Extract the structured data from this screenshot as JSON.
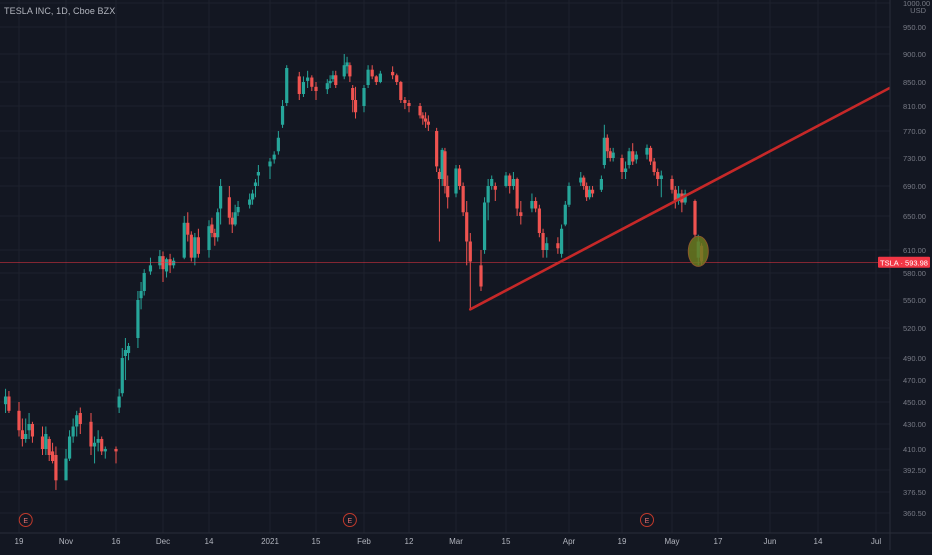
{
  "header": {
    "title": "TESLA INC, 1D, Cboe BZX"
  },
  "chart_data": {
    "type": "candlestick",
    "currency": "USD",
    "y_ticks": [
      1000,
      950,
      900,
      850,
      810,
      770,
      730,
      690,
      650,
      610,
      580,
      550,
      520,
      490,
      470,
      450,
      430,
      410,
      392.5,
      376.5,
      360.5
    ],
    "y_tick_labels": [
      "1000.00",
      "950.00",
      "900.00",
      "850.00",
      "810.00",
      "770.00",
      "730.00",
      "690.00",
      "650.00",
      "610.00",
      "580.00",
      "550.00",
      "520.00",
      "490.00",
      "470.00",
      "450.00",
      "430.00",
      "410.00",
      "392.50",
      "376.50",
      "360.50"
    ],
    "x_ticks": [
      {
        "label": "19",
        "date": "2020-10-19"
      },
      {
        "label": "Nov",
        "date": "2020-11-02"
      },
      {
        "label": "16",
        "date": "2020-11-16"
      },
      {
        "label": "Dec",
        "date": "2020-12-01"
      },
      {
        "label": "14",
        "date": "2020-12-14"
      },
      {
        "label": "2021",
        "date": "2021-01-04"
      },
      {
        "label": "15",
        "date": "2021-01-15"
      },
      {
        "label": "Feb",
        "date": "2021-02-01"
      },
      {
        "label": "12",
        "date": "2021-02-12"
      },
      {
        "label": "Mar",
        "date": "2021-03-01"
      },
      {
        "label": "15",
        "date": "2021-03-15"
      },
      {
        "label": "Apr",
        "date": "2021-04-01"
      },
      {
        "label": "19",
        "date": "2021-04-19"
      },
      {
        "label": "May",
        "date": "2021-05-03"
      },
      {
        "label": "17",
        "date": "2021-05-17"
      },
      {
        "label": "Jun",
        "date": "2021-06-01"
      },
      {
        "label": "14",
        "date": "2021-06-14"
      },
      {
        "label": "Jul",
        "date": "2021-07-01"
      }
    ],
    "last_price": {
      "symbol": "TSLA",
      "value": "593.98",
      "label": "TSLA · 593.98",
      "color": "#f23645"
    },
    "earnings_markers": [
      {
        "date": "2020-10-21",
        "label": "E"
      },
      {
        "date": "2021-01-27",
        "label": "E"
      },
      {
        "date": "2021-04-26",
        "label": "E"
      }
    ],
    "trendline": {
      "from": {
        "date": "2021-03-05",
        "price": 540
      },
      "to": {
        "date": "2021-07-05",
        "price": 840
      },
      "color": "#c62828"
    },
    "highlight": {
      "date": "2021-05-11",
      "price_low": 590,
      "price_high": 625,
      "color": "#6b7a1f"
    },
    "candles": [
      [
        "2020-10-15",
        448,
        462,
        440,
        455
      ],
      [
        "2020-10-16",
        455,
        460,
        440,
        442
      ],
      [
        "2020-10-19",
        442,
        450,
        420,
        425
      ],
      [
        "2020-10-20",
        425,
        435,
        412,
        418
      ],
      [
        "2020-10-21",
        418,
        435,
        415,
        422
      ],
      [
        "2020-10-22",
        425,
        440,
        418,
        430
      ],
      [
        "2020-10-23",
        430,
        432,
        415,
        420
      ],
      [
        "2020-10-26",
        420,
        428,
        405,
        410
      ],
      [
        "2020-10-27",
        410,
        428,
        405,
        422
      ],
      [
        "2020-10-28",
        418,
        420,
        400,
        405
      ],
      [
        "2020-10-29",
        408,
        415,
        398,
        400
      ],
      [
        "2020-10-30",
        405,
        412,
        378,
        385
      ],
      [
        "2020-11-02",
        385,
        410,
        385,
        402
      ],
      [
        "2020-11-03",
        402,
        425,
        400,
        420
      ],
      [
        "2020-11-04",
        420,
        435,
        415,
        428
      ],
      [
        "2020-11-05",
        428,
        442,
        420,
        438
      ],
      [
        "2020-11-06",
        440,
        445,
        422,
        430
      ],
      [
        "2020-11-09",
        432,
        440,
        405,
        412
      ],
      [
        "2020-11-10",
        412,
        420,
        398,
        415
      ],
      [
        "2020-11-11",
        415,
        425,
        408,
        418
      ],
      [
        "2020-11-12",
        418,
        420,
        405,
        408
      ],
      [
        "2020-11-13",
        408,
        412,
        402,
        410
      ],
      [
        "2020-11-16",
        410,
        412,
        398,
        408
      ],
      [
        "2020-11-17",
        445,
        462,
        440,
        455
      ],
      [
        "2020-11-18",
        458,
        500,
        455,
        490
      ],
      [
        "2020-11-19",
        492,
        510,
        470,
        498
      ],
      [
        "2020-11-20",
        495,
        505,
        488,
        502
      ],
      [
        "2020-11-23",
        510,
        560,
        500,
        550
      ],
      [
        "2020-11-24",
        552,
        570,
        540,
        560
      ],
      [
        "2020-11-25",
        560,
        585,
        555,
        580
      ],
      [
        "2020-11-27",
        582,
        600,
        578,
        590
      ],
      [
        "2020-11-30",
        590,
        610,
        585,
        602
      ],
      [
        "2020-12-01",
        602,
        608,
        570,
        585
      ],
      [
        "2020-12-02",
        582,
        600,
        575,
        598
      ],
      [
        "2020-12-03",
        598,
        605,
        580,
        590
      ],
      [
        "2020-12-04",
        590,
        600,
        586,
        596
      ],
      [
        "2020-12-07",
        600,
        650,
        598,
        642
      ],
      [
        "2020-12-08",
        642,
        655,
        620,
        628
      ],
      [
        "2020-12-09",
        628,
        632,
        595,
        600
      ],
      [
        "2020-12-10",
        600,
        630,
        590,
        625
      ],
      [
        "2020-12-11",
        625,
        635,
        600,
        605
      ],
      [
        "2020-12-14",
        610,
        645,
        600,
        638
      ],
      [
        "2020-12-15",
        640,
        648,
        625,
        630
      ],
      [
        "2020-12-16",
        630,
        635,
        615,
        625
      ],
      [
        "2020-12-17",
        625,
        660,
        620,
        655
      ],
      [
        "2020-12-18",
        660,
        700,
        640,
        690
      ],
      [
        "2020-12-21",
        675,
        690,
        640,
        648
      ],
      [
        "2020-12-22",
        648,
        655,
        630,
        640
      ],
      [
        "2020-12-23",
        640,
        665,
        638,
        655
      ],
      [
        "2020-12-24",
        655,
        670,
        650,
        662
      ],
      [
        "2020-12-28",
        665,
        680,
        660,
        672
      ],
      [
        "2020-12-29",
        672,
        685,
        665,
        680
      ],
      [
        "2020-12-30",
        690,
        700,
        675,
        695
      ],
      [
        "2020-12-31",
        705,
        720,
        690,
        710
      ],
      [
        "2021-01-04",
        718,
        730,
        700,
        725
      ],
      [
        "2021-01-05",
        728,
        740,
        722,
        735
      ],
      [
        "2021-01-06",
        740,
        770,
        735,
        760
      ],
      [
        "2021-01-07",
        780,
        820,
        775,
        810
      ],
      [
        "2021-01-08",
        815,
        880,
        810,
        875
      ],
      [
        "2021-01-11",
        860,
        868,
        820,
        830
      ],
      [
        "2021-01-12",
        830,
        860,
        825,
        850
      ],
      [
        "2021-01-13",
        852,
        870,
        840,
        858
      ],
      [
        "2021-01-14",
        858,
        862,
        835,
        842
      ],
      [
        "2021-01-15",
        842,
        850,
        820,
        835
      ],
      [
        "2021-01-19",
        838,
        855,
        830,
        848
      ],
      [
        "2021-01-20",
        848,
        862,
        840,
        852
      ],
      [
        "2021-01-21",
        855,
        870,
        850,
        862
      ],
      [
        "2021-01-22",
        862,
        870,
        840,
        845
      ],
      [
        "2021-01-25",
        860,
        900,
        855,
        880
      ],
      [
        "2021-01-26",
        878,
        895,
        865,
        885
      ],
      [
        "2021-01-27",
        880,
        885,
        850,
        860
      ],
      [
        "2021-01-28",
        840,
        845,
        800,
        820
      ],
      [
        "2021-01-29",
        820,
        842,
        790,
        800
      ],
      [
        "2021-02-01",
        810,
        845,
        800,
        840
      ],
      [
        "2021-02-02",
        845,
        880,
        840,
        872
      ],
      [
        "2021-02-03",
        872,
        880,
        855,
        860
      ],
      [
        "2021-02-04",
        860,
        862,
        845,
        850
      ],
      [
        "2021-02-05",
        850,
        870,
        848,
        865
      ],
      [
        "2021-02-08",
        868,
        878,
        855,
        862
      ],
      [
        "2021-02-09",
        862,
        865,
        845,
        850
      ],
      [
        "2021-02-10",
        850,
        852,
        815,
        820
      ],
      [
        "2021-02-11",
        820,
        825,
        805,
        815
      ],
      [
        "2021-02-12",
        815,
        820,
        800,
        810
      ],
      [
        "2021-02-16",
        810,
        815,
        790,
        795
      ],
      [
        "2021-02-17",
        795,
        800,
        780,
        790
      ],
      [
        "2021-02-18",
        790,
        800,
        775,
        785
      ],
      [
        "2021-02-19",
        785,
        795,
        770,
        780
      ],
      [
        "2021-02-22",
        770,
        775,
        710,
        718
      ],
      [
        "2021-02-23",
        710,
        715,
        620,
        700
      ],
      [
        "2021-02-24",
        700,
        745,
        690,
        742
      ],
      [
        "2021-02-25",
        740,
        745,
        680,
        690
      ],
      [
        "2021-02-26",
        690,
        705,
        660,
        675
      ],
      [
        "2021-03-01",
        680,
        720,
        675,
        715
      ],
      [
        "2021-03-02",
        715,
        720,
        685,
        690
      ],
      [
        "2021-03-03",
        690,
        695,
        650,
        655
      ],
      [
        "2021-03-04",
        655,
        670,
        590,
        620
      ],
      [
        "2021-03-05",
        620,
        630,
        540,
        595
      ],
      [
        "2021-03-08",
        590,
        610,
        560,
        565
      ],
      [
        "2021-03-09",
        610,
        675,
        605,
        668
      ],
      [
        "2021-03-10",
        668,
        700,
        645,
        690
      ],
      [
        "2021-03-11",
        690,
        705,
        685,
        700
      ],
      [
        "2021-03-12",
        690,
        695,
        670,
        685
      ],
      [
        "2021-03-15",
        690,
        710,
        688,
        705
      ],
      [
        "2021-03-16",
        705,
        708,
        680,
        690
      ],
      [
        "2021-03-17",
        690,
        710,
        685,
        700
      ],
      [
        "2021-03-18",
        700,
        702,
        650,
        660
      ],
      [
        "2021-03-19",
        655,
        670,
        640,
        650
      ],
      [
        "2021-03-22",
        660,
        680,
        655,
        670
      ],
      [
        "2021-03-23",
        670,
        675,
        655,
        660
      ],
      [
        "2021-03-24",
        660,
        665,
        625,
        630
      ],
      [
        "2021-03-25",
        630,
        635,
        600,
        610
      ],
      [
        "2021-03-26",
        610,
        625,
        600,
        618
      ],
      [
        "2021-03-29",
        618,
        625,
        605,
        612
      ],
      [
        "2021-03-30",
        605,
        640,
        600,
        635
      ],
      [
        "2021-03-31",
        640,
        670,
        638,
        665
      ],
      [
        "2021-04-01",
        665,
        695,
        662,
        690
      ],
      [
        "2021-04-05",
        695,
        710,
        690,
        702
      ],
      [
        "2021-04-06",
        702,
        705,
        685,
        690
      ],
      [
        "2021-04-07",
        690,
        695,
        670,
        675
      ],
      [
        "2021-04-08",
        675,
        690,
        672,
        685
      ],
      [
        "2021-04-09",
        685,
        690,
        675,
        680
      ],
      [
        "2021-04-12",
        685,
        705,
        682,
        700
      ],
      [
        "2021-04-13",
        720,
        780,
        715,
        760
      ],
      [
        "2021-04-14",
        760,
        765,
        730,
        740
      ],
      [
        "2021-04-15",
        740,
        745,
        725,
        730
      ],
      [
        "2021-04-16",
        730,
        745,
        725,
        738
      ],
      [
        "2021-04-19",
        730,
        735,
        700,
        710
      ],
      [
        "2021-04-20",
        710,
        725,
        700,
        715
      ],
      [
        "2021-04-21",
        720,
        745,
        715,
        740
      ],
      [
        "2021-04-22",
        740,
        752,
        720,
        725
      ],
      [
        "2021-04-23",
        728,
        740,
        722,
        735
      ],
      [
        "2021-04-26",
        735,
        750,
        728,
        745
      ],
      [
        "2021-04-27",
        745,
        748,
        720,
        725
      ],
      [
        "2021-04-28",
        725,
        730,
        705,
        710
      ],
      [
        "2021-04-29",
        710,
        715,
        690,
        700
      ],
      [
        "2021-04-30",
        700,
        712,
        675,
        705
      ],
      [
        "2021-05-03",
        700,
        705,
        680,
        685
      ],
      [
        "2021-05-04",
        685,
        690,
        660,
        670
      ],
      [
        "2021-05-05",
        670,
        690,
        665,
        680
      ],
      [
        "2021-05-06",
        680,
        685,
        655,
        668
      ],
      [
        "2021-05-07",
        668,
        685,
        665,
        680
      ],
      [
        "2021-05-10",
        670,
        672,
        625,
        628
      ],
      [
        "2021-05-11",
        600,
        628,
        590,
        620
      ],
      [
        "2021-05-12",
        615,
        618,
        590,
        595
      ]
    ]
  }
}
